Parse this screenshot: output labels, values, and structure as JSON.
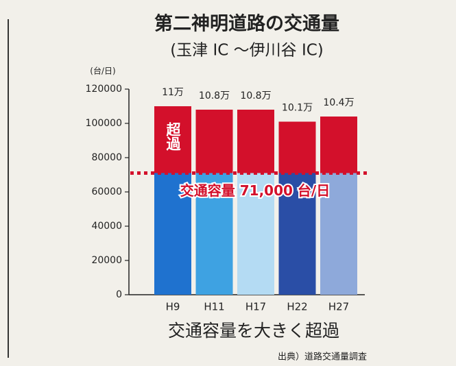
{
  "chart_data": {
    "type": "bar",
    "title": "第二神明道路の交通量",
    "subtitle": "(玉津 IC ～伊川谷 IC)",
    "y_unit": "(台/日)",
    "categories": [
      "H9",
      "H11",
      "H17",
      "H22",
      "H27"
    ],
    "values": [
      110000,
      108000,
      108000,
      101000,
      104000
    ],
    "value_labels": [
      "11万",
      "10.8万",
      "10.8万",
      "10.1万",
      "10.4万"
    ],
    "colors": [
      "#1f72cf",
      "#3ea2e2",
      "#b4dbf3",
      "#2a4ea6",
      "#8ea9da"
    ],
    "over_color": "#d3102b",
    "capacity": {
      "value": 71000,
      "label": "交通容量 71,000 台/日"
    },
    "over_label": "超過",
    "caption": "交通容量を大きく超過",
    "source": "出典）道路交通量調査",
    "ylim": [
      0,
      120000
    ],
    "yticks": [
      0,
      20000,
      40000,
      60000,
      80000,
      100000,
      120000
    ],
    "grid": false
  }
}
